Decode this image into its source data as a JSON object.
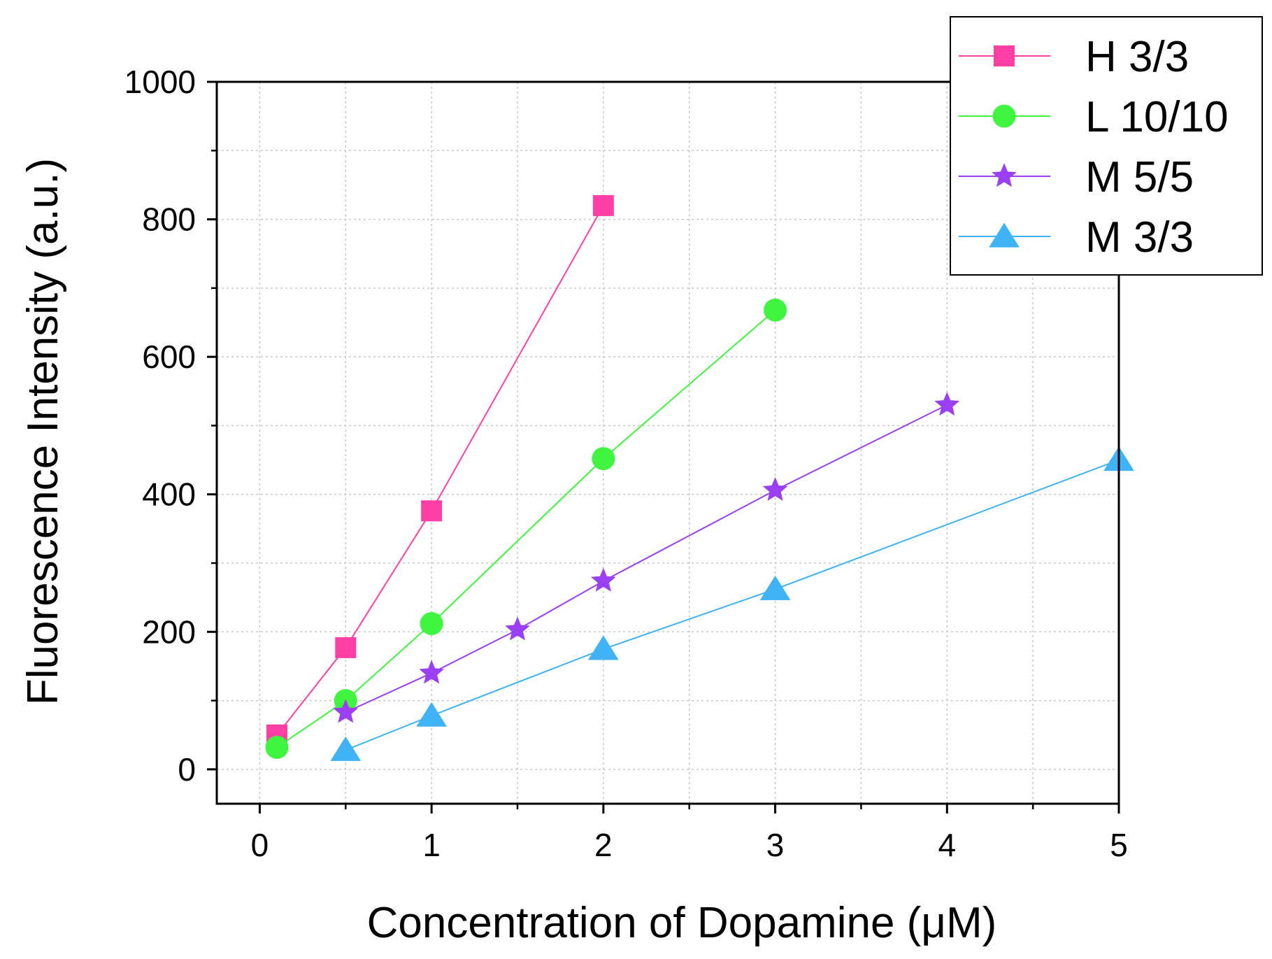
{
  "chart_data": {
    "type": "line",
    "title": "",
    "xlabel": "Concentration of Dopamine (μM)",
    "ylabel": "Fluorescence Intensity (a.u.)",
    "xlim": [
      -0.25,
      5
    ],
    "ylim": [
      -50,
      1000
    ],
    "xticks": [
      0,
      1,
      2,
      3,
      4,
      5
    ],
    "yticks": [
      0,
      200,
      400,
      600,
      800,
      1000
    ],
    "xtick_labels": [
      "0",
      "1",
      "2",
      "3",
      "4",
      "5"
    ],
    "ytick_labels": [
      "0",
      "200",
      "400",
      "600",
      "800",
      "1000"
    ],
    "grid": true,
    "legend_position": "top-right",
    "series": [
      {
        "name": "H 3/3",
        "color": "#ff3fa4",
        "marker": "square",
        "x": [
          0.1,
          0.5,
          1,
          2
        ],
        "y": [
          50,
          177,
          376,
          820
        ]
      },
      {
        "name": "L 10/10",
        "color": "#3ff53f",
        "marker": "circle",
        "x": [
          0.1,
          0.5,
          1,
          2,
          3
        ],
        "y": [
          32,
          100,
          212,
          452,
          668
        ]
      },
      {
        "name": "M 5/5",
        "color": "#9b3ff5",
        "marker": "star",
        "x": [
          0.5,
          1,
          1.5,
          2,
          3,
          4
        ],
        "y": [
          83,
          140,
          203,
          274,
          406,
          530
        ]
      },
      {
        "name": "M 3/3",
        "color": "#3fb3f5",
        "marker": "triangle",
        "x": [
          0.5,
          1,
          2,
          3,
          5
        ],
        "y": [
          28,
          78,
          175,
          262,
          450
        ]
      }
    ]
  }
}
